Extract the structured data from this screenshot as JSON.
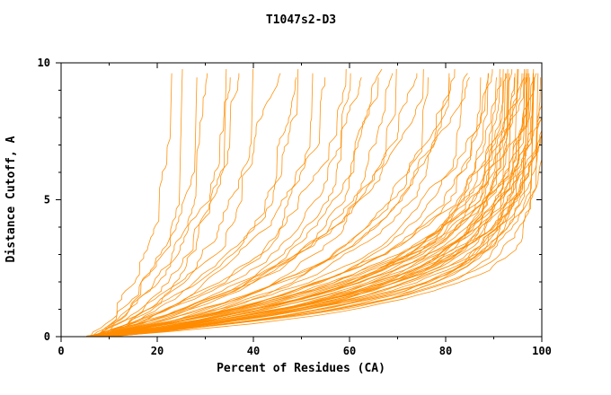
{
  "chart_data": {
    "type": "line",
    "title": "T1047s2-D3",
    "xlabel": "Percent of Residues (CA)",
    "ylabel": "Distance Cutoff, A",
    "xlim": [
      0,
      100
    ],
    "ylim": [
      0,
      10
    ],
    "x_major_ticks": [
      0,
      20,
      40,
      60,
      80,
      100
    ],
    "x_minor_step": 10,
    "y_major_ticks": [
      0,
      5,
      10
    ],
    "y_minor_step": 1,
    "grid": false,
    "legend": "none",
    "line_color": "#ff8c00",
    "axis_color": "#000000",
    "background": "#ffffff",
    "series_model": "x(y) = xs + (xe - xs) * (1 - exp(-y/tau)) + jitter, vertical cap at xe/100, curve ends at ytop",
    "seed": 1047,
    "curves": [
      [
        7,
        21,
        2.6,
        9.7
      ],
      [
        8,
        24,
        2.2,
        9.8
      ],
      [
        6,
        28,
        2.8,
        9.6
      ],
      [
        7,
        30,
        2.4,
        9.7
      ],
      [
        9,
        33,
        2.0,
        9.8
      ],
      [
        8,
        35,
        2.6,
        9.7
      ],
      [
        6,
        37,
        3.0,
        9.6
      ],
      [
        7,
        39,
        2.3,
        9.8
      ],
      [
        6,
        45,
        3.2,
        9.7
      ],
      [
        7,
        50,
        2.8,
        9.6
      ],
      [
        8,
        52,
        3.0,
        9.8
      ],
      [
        6,
        55,
        2.5,
        9.7
      ],
      [
        9,
        58,
        3.3,
        9.6
      ],
      [
        7,
        60,
        2.9,
        9.8
      ],
      [
        8,
        62,
        2.4,
        9.7
      ],
      [
        6,
        64,
        3.1,
        9.6
      ],
      [
        7,
        66,
        2.7,
        9.8
      ],
      [
        9,
        68,
        2.2,
        9.7
      ],
      [
        8,
        70,
        3.0,
        9.6
      ],
      [
        6,
        72,
        2.6,
        9.8
      ],
      [
        7,
        74,
        2.9,
        9.7
      ],
      [
        8,
        76,
        2.3,
        9.6
      ],
      [
        6,
        78,
        3.2,
        9.8
      ],
      [
        9,
        80,
        2.7,
        9.7
      ],
      [
        7,
        82,
        2.4,
        9.6
      ],
      [
        8,
        84,
        3.0,
        9.8
      ],
      [
        6,
        85,
        2.1,
        9.7
      ],
      [
        7,
        86,
        2.8,
        9.6
      ],
      [
        5,
        88,
        1.8,
        9.7
      ],
      [
        6,
        89,
        2.2,
        9.6
      ],
      [
        7,
        90,
        1.5,
        9.8
      ],
      [
        8,
        90,
        2.4,
        9.7
      ],
      [
        5,
        91,
        1.9,
        9.6
      ],
      [
        6,
        91,
        2.6,
        9.8
      ],
      [
        7,
        92,
        1.4,
        9.7
      ],
      [
        8,
        92,
        2.1,
        9.6
      ],
      [
        5,
        93,
        1.7,
        9.8
      ],
      [
        6,
        93,
        2.3,
        9.7
      ],
      [
        7,
        94,
        1.3,
        9.6
      ],
      [
        8,
        94,
        2.0,
        9.8
      ],
      [
        5,
        94,
        2.5,
        9.7
      ],
      [
        6,
        95,
        1.6,
        9.6
      ],
      [
        7,
        95,
        2.2,
        9.8
      ],
      [
        8,
        95,
        1.9,
        9.7
      ],
      [
        5,
        96,
        1.4,
        9.6
      ],
      [
        6,
        96,
        2.4,
        9.8
      ],
      [
        7,
        96,
        1.8,
        9.7
      ],
      [
        8,
        97,
        1.3,
        9.6
      ],
      [
        5,
        97,
        2.0,
        9.8
      ],
      [
        6,
        97,
        2.5,
        9.7
      ],
      [
        7,
        98,
        1.5,
        9.6
      ],
      [
        8,
        98,
        2.2,
        9.8
      ],
      [
        5,
        98,
        1.7,
        9.7
      ],
      [
        6,
        98,
        1.2,
        9.6
      ],
      [
        7,
        99,
        1.9,
        9.8
      ],
      [
        8,
        99,
        1.4,
        9.7
      ],
      [
        5,
        99,
        2.3,
        9.6
      ],
      [
        6,
        99,
        1.6,
        9.8
      ],
      [
        7,
        100,
        2.0,
        9.7
      ],
      [
        8,
        100,
        1.3,
        9.6
      ],
      [
        5,
        100,
        1.8,
        9.8
      ],
      [
        6,
        100,
        2.4,
        9.7
      ],
      [
        9,
        96,
        1.5,
        9.6
      ],
      [
        9,
        97,
        2.1,
        9.8
      ],
      [
        9,
        98,
        1.6,
        9.7
      ],
      [
        9,
        99,
        1.2,
        9.6
      ],
      [
        10,
        95,
        2.3,
        9.8
      ],
      [
        10,
        97,
        1.7,
        9.7
      ],
      [
        10,
        99,
        2.0,
        9.6
      ],
      [
        11,
        96,
        1.4,
        9.8
      ],
      [
        11,
        98,
        1.9,
        9.7
      ],
      [
        11,
        100,
        1.5,
        9.6
      ]
    ]
  }
}
